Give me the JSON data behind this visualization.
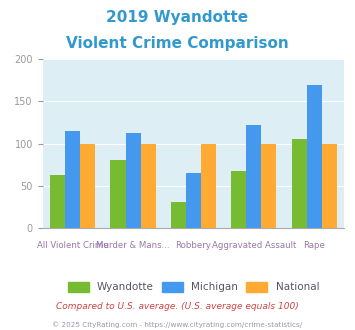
{
  "title_line1": "2019 Wyandotte",
  "title_line2": "Violent Crime Comparison",
  "title_color": "#3399cc",
  "categories": [
    "All Violent Crime",
    "Murder & Mans...",
    "Robbery",
    "Aggravated Assault",
    "Rape"
  ],
  "wyandotte": [
    63,
    80,
    30,
    67,
    105
  ],
  "michigan": [
    115,
    112,
    65,
    122,
    170
  ],
  "national": [
    100,
    100,
    100,
    100,
    100
  ],
  "color_wyandotte": "#77bb33",
  "color_michigan": "#4499ee",
  "color_national": "#ffaa33",
  "bg_color": "#ddeef5",
  "ylim": [
    0,
    200
  ],
  "yticks": [
    0,
    50,
    100,
    150,
    200
  ],
  "legend_labels": [
    "Wyandotte",
    "Michigan",
    "National"
  ],
  "footnote1": "Compared to U.S. average. (U.S. average equals 100)",
  "footnote2": "© 2025 CityRating.com - https://www.cityrating.com/crime-statistics/",
  "footnote1_color": "#cc4444",
  "footnote2_color": "#9999aa",
  "xlabel_color": "#9977aa",
  "ylabel_color": "#999999",
  "legend_text_color": "#555566"
}
